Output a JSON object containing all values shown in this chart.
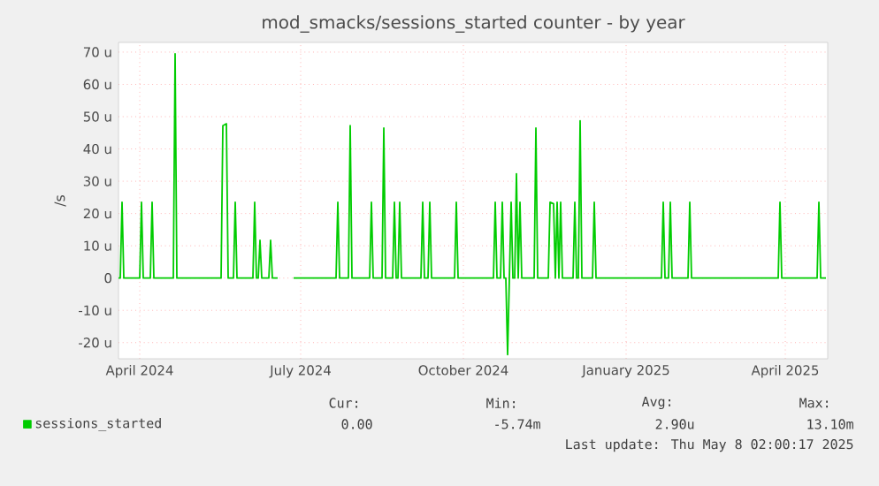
{
  "chart_data": {
    "type": "line",
    "title": "mod_smacks/sessions_started counter - by year",
    "ylabel": "/s",
    "x": [
      "2024-03-20",
      "2024-03-21",
      "2024-03-22",
      "2024-03-23",
      "2024-04-01",
      "2024-04-02",
      "2024-04-03",
      "2024-04-07",
      "2024-04-08",
      "2024-04-09",
      "2024-04-20",
      "2024-04-21",
      "2024-04-22",
      "2024-05-17",
      "2024-05-18",
      "2024-05-20",
      "2024-05-21",
      "2024-05-24",
      "2024-05-25",
      "2024-05-26",
      "2024-06-04",
      "2024-06-05",
      "2024-06-06",
      "2024-06-07",
      "2024-06-08",
      "2024-06-09",
      "2024-06-13",
      "2024-06-14",
      "2024-06-15",
      "2024-06-18",
      "2024-06-19",
      "2024-06-27",
      "2024-07-21",
      "2024-07-22",
      "2024-07-23",
      "2024-07-28",
      "2024-07-29",
      "2024-07-30",
      "2024-08-09",
      "2024-08-10",
      "2024-08-11",
      "2024-08-16",
      "2024-08-17",
      "2024-08-18",
      "2024-08-22",
      "2024-08-23",
      "2024-08-24",
      "2024-08-25",
      "2024-08-26",
      "2024-08-27",
      "2024-09-07",
      "2024-09-08",
      "2024-09-09",
      "2024-09-11",
      "2024-09-12",
      "2024-09-13",
      "2024-09-26",
      "2024-09-27",
      "2024-09-28",
      "2024-10-18",
      "2024-10-19",
      "2024-10-20",
      "2024-10-22",
      "2024-10-23",
      "2024-10-24",
      "2024-10-25",
      "2024-10-26",
      "2024-10-27",
      "2024-10-28",
      "2024-10-29",
      "2024-10-30",
      "2024-10-31",
      "2024-11-01",
      "2024-11-02",
      "2024-11-03",
      "2024-11-10",
      "2024-11-11",
      "2024-11-12",
      "2024-11-18",
      "2024-11-19",
      "2024-11-21",
      "2024-11-22",
      "2024-11-23",
      "2024-11-24",
      "2024-11-25",
      "2024-11-26",
      "2024-12-02",
      "2024-12-03",
      "2024-12-04",
      "2024-12-05",
      "2024-12-06",
      "2024-12-07",
      "2024-12-13",
      "2024-12-14",
      "2024-12-15",
      "2025-01-21",
      "2025-01-22",
      "2025-01-23",
      "2025-01-25",
      "2025-01-26",
      "2025-01-27",
      "2025-02-05",
      "2025-02-06",
      "2025-02-07",
      "2025-03-28",
      "2025-03-29",
      "2025-03-30",
      "2025-04-19",
      "2025-04-20",
      "2025-04-21",
      "2025-04-24"
    ],
    "series": [
      {
        "name": "sessions_started",
        "color": "#00cc00",
        "values": [
          0,
          0,
          23.5,
          0,
          0,
          23.5,
          0,
          0,
          23.5,
          0,
          0,
          69.5,
          0,
          0,
          47.2,
          47.8,
          0,
          0,
          23.5,
          0,
          0,
          23.5,
          0,
          0,
          11.7,
          0,
          0,
          11.7,
          0,
          0,
          null,
          0,
          0,
          23.5,
          0,
          0,
          47.2,
          0,
          0,
          23.5,
          0,
          0,
          46.5,
          0,
          0,
          23.5,
          0,
          0,
          23.5,
          0,
          0,
          23.5,
          0,
          0,
          23.5,
          0,
          0,
          23.5,
          0,
          0,
          23.5,
          0,
          0,
          23.5,
          0,
          0,
          -23.7,
          0,
          23.5,
          0,
          0,
          32.3,
          0,
          23.5,
          0,
          0,
          46.5,
          0,
          0,
          23.5,
          23,
          0,
          23.5,
          0,
          23.5,
          0,
          0,
          23.5,
          0,
          0,
          48.7,
          0,
          0,
          23.5,
          0,
          0,
          23.5,
          0,
          0,
          23.5,
          0,
          0,
          23.5,
          0,
          0,
          23.5,
          0,
          0,
          23.5,
          0,
          0
        ]
      }
    ],
    "xlim": [
      "2024-03-20",
      "2025-04-25"
    ],
    "xticks": [
      {
        "value": "2024-04-01",
        "label": "April 2024"
      },
      {
        "value": "2024-07-01",
        "label": "July 2024"
      },
      {
        "value": "2024-10-01",
        "label": "October 2024"
      },
      {
        "value": "2025-01-01",
        "label": "January 2025"
      },
      {
        "value": "2025-04-01",
        "label": "April 2025"
      }
    ],
    "ylim": [
      -25,
      73
    ],
    "yticks": [
      {
        "value": -20,
        "label": "-20 u"
      },
      {
        "value": -10,
        "label": "-10 u"
      },
      0,
      {
        "value": 10,
        "label": "10 u"
      },
      {
        "value": 20,
        "label": "20 u"
      },
      {
        "value": 30,
        "label": "30 u"
      },
      {
        "value": 40,
        "label": "40 u"
      },
      {
        "value": 50,
        "label": "50 u"
      },
      {
        "value": 60,
        "label": "60 u"
      },
      {
        "value": 70,
        "label": "70 u"
      }
    ],
    "grid": true,
    "legend": "bottom",
    "annotations": [
      "Cur:",
      "0.00",
      "Min:",
      "-5.74m",
      "Avg:",
      "2.90u",
      "Max:",
      "13.10m",
      "Last update: Thu May  8 02:00:17 2025"
    ]
  }
}
